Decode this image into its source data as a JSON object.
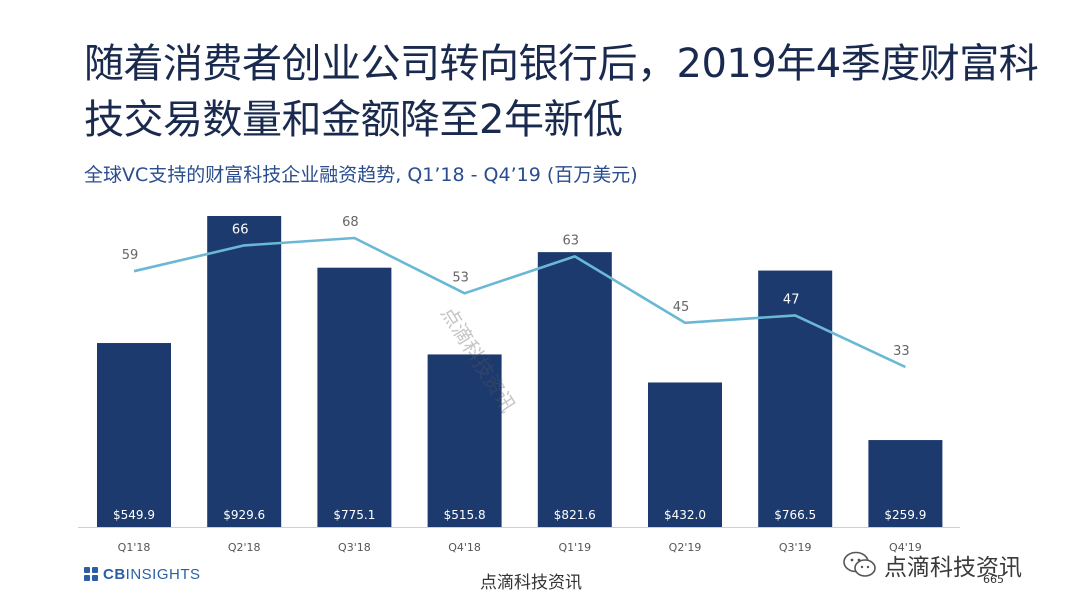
{
  "slide": {
    "title": "随着消费者创业公司转向银行后，2019年4季度财富科技交易数量和金额降至2年新低",
    "subtitle": "全球VC支持的财富科技企业融资趋势, Q1’18 -  Q4’19 (百万美元)",
    "logo_prefix": "CB",
    "logo_suffix": "INSIGHTS",
    "watermark": "点滴科技资讯",
    "wechat_label": "点滴科技资讯",
    "page_number": "665"
  },
  "colors": {
    "bar": "#1d3a6e",
    "line": "#6ab8d6",
    "title": "#1a2a4f",
    "subtitle": "#2a4d8f",
    "logo": "#2a5fa8"
  },
  "chart_data": {
    "type": "bar",
    "categories": [
      "Q1'18",
      "Q2'18",
      "Q3'18",
      "Q4'18",
      "Q1'19",
      "Q2'19",
      "Q3'19",
      "Q4'19"
    ],
    "series": [
      {
        "type": "bar",
        "values": [
          549.9,
          929.6,
          775.1,
          515.8,
          821.6,
          432.0,
          766.5,
          259.9
        ],
        "labels": [
          "$549.9",
          "$929.6",
          "$775.1",
          "$515.8",
          "$821.6",
          "$432.0",
          "$766.5",
          "$259.9"
        ]
      },
      {
        "type": "line",
        "values": [
          59,
          66,
          68,
          53,
          63,
          45,
          47,
          33
        ]
      }
    ],
    "xlabel": "",
    "ylabel": "",
    "grid": false,
    "legend": "none"
  }
}
